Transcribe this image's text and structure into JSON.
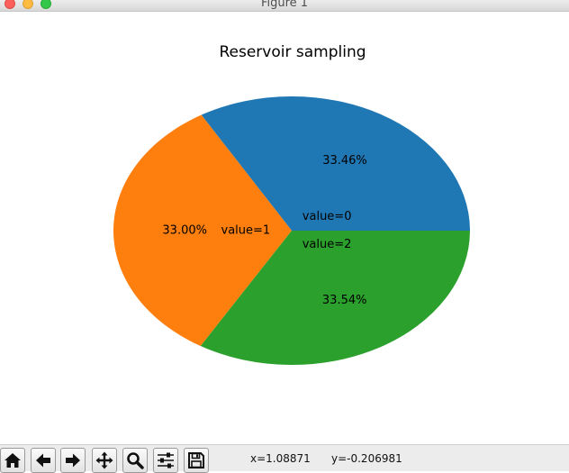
{
  "window": {
    "title": "Figure 1"
  },
  "chart_data": {
    "type": "pie",
    "title": "Reservoir sampling",
    "slices": [
      {
        "label": "value=0",
        "value": 33.46,
        "pct_label": "33.46%",
        "color": "#1f77b4"
      },
      {
        "label": "value=1",
        "value": 33.0,
        "pct_label": "33.00%",
        "color": "#ff7f0e"
      },
      {
        "label": "value=2",
        "value": 33.54,
        "pct_label": "33.54%",
        "color": "#2ca02c"
      }
    ]
  },
  "toolbar": {
    "buttons": [
      {
        "name": "home-button",
        "icon": "home-icon"
      },
      {
        "name": "back-button",
        "icon": "arrow-left-icon"
      },
      {
        "name": "forward-button",
        "icon": "arrow-right-icon"
      },
      {
        "name": "pan-button",
        "icon": "move-icon"
      },
      {
        "name": "zoom-button",
        "icon": "magnifier-icon"
      },
      {
        "name": "configure-subplots-button",
        "icon": "sliders-icon"
      },
      {
        "name": "save-button",
        "icon": "floppy-icon"
      }
    ],
    "x_readout": "x=1.08871",
    "y_readout": "y=-0.206981"
  }
}
